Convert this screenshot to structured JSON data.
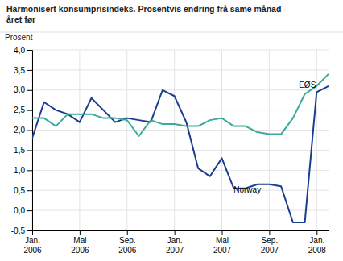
{
  "chart_data": {
    "type": "line",
    "title": "Harmonisert konsumprisindeks. Prosentvis endring frå same månad\nåret før",
    "y_label": "Prosent",
    "categories": [
      "Jan.\n2006",
      null,
      null,
      null,
      "Mai\n2006",
      null,
      null,
      null,
      "Sep.\n2006",
      null,
      null,
      null,
      "Jan.\n2007",
      null,
      null,
      null,
      "Mai\n2007",
      null,
      null,
      null,
      "Sep.\n2007",
      null,
      null,
      null,
      "Jan.\n2008",
      null
    ],
    "series": [
      {
        "color": "#1a3d8f",
        "values": [
          1.8,
          2.7,
          2.5,
          2.4,
          2.2,
          2.8,
          2.5,
          2.2,
          2.3,
          2.25,
          2.2,
          3.0,
          2.85,
          2.2,
          1.05,
          0.85,
          1.3,
          0.55,
          0.55,
          0.65,
          0.65,
          0.6,
          -0.3,
          -0.3,
          2.95,
          3.1
        ]
      },
      {
        "color": "#3aaa9a",
        "values": [
          2.3,
          2.3,
          2.1,
          2.4,
          2.4,
          2.4,
          2.3,
          2.3,
          2.25,
          1.85,
          2.25,
          2.15,
          2.15,
          2.1,
          2.1,
          2.25,
          2.3,
          2.1,
          2.1,
          1.95,
          1.9,
          1.9,
          2.3,
          2.9,
          3.1,
          3.4
        ]
      }
    ],
    "ylim": [
      -0.5,
      4.0
    ],
    "yticks": [
      {
        "value": -0.5,
        "label": "-0,5"
      },
      {
        "value": 0.0,
        "label": "0,0"
      },
      {
        "value": 0.5,
        "label": "0,5"
      },
      {
        "value": 1.0,
        "label": "1,0"
      },
      {
        "value": 1.5,
        "label": "1,5"
      },
      {
        "value": 2.0,
        "label": "2,0"
      },
      {
        "value": 2.5,
        "label": "2,5"
      },
      {
        "value": 3.0,
        "label": "3,0"
      },
      {
        "value": 3.5,
        "label": "3,5"
      },
      {
        "value": 4.0,
        "label": "4,0"
      }
    ],
    "grid": true,
    "annotations": [
      {
        "text": "Norway",
        "x": 17,
        "y": 0.45
      },
      {
        "text": "EØS",
        "x": 22.5,
        "y": 3.05
      }
    ]
  }
}
